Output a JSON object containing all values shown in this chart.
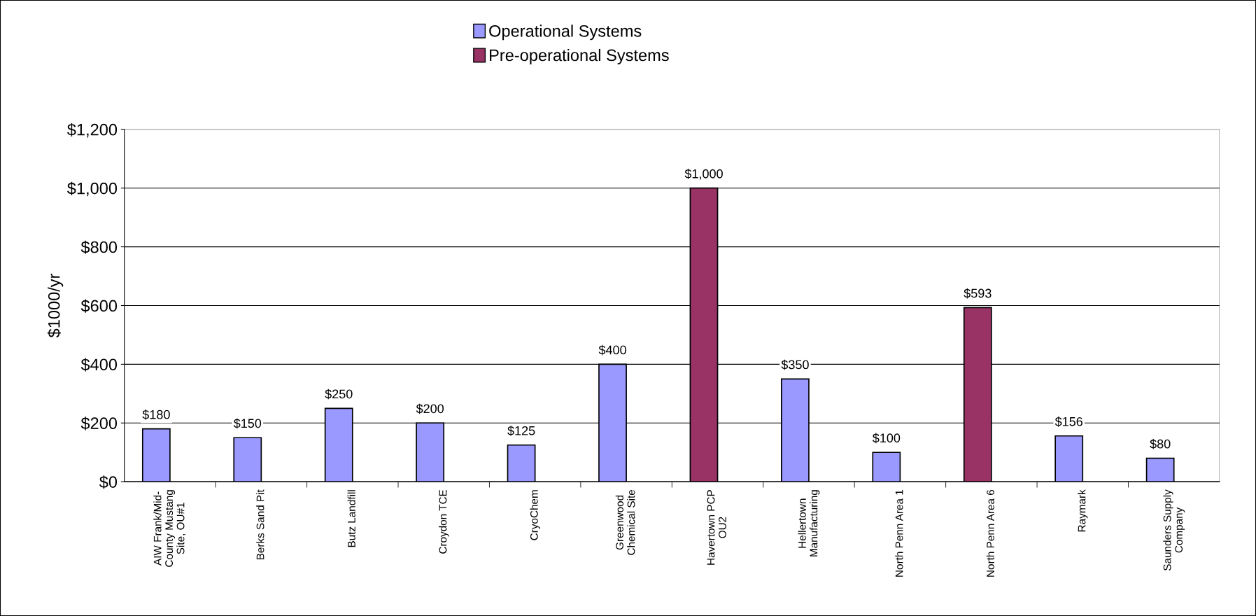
{
  "chart_data": {
    "type": "bar",
    "stacked": true,
    "ylabel": "$1000/yr",
    "categories": [
      "AIW Frank/Mid-\nCounty Mustang\nSite, OU#1",
      "Berks Sand Pit",
      "Butz Landfill",
      "Croydon TCE",
      "CryoChem",
      "Greenwood\nChemical Site",
      "Havertown PCP\nOU2",
      "Hellertown\nManufacturing",
      "North Penn Area 1",
      "North Penn Area 6",
      "Raymark",
      "Saunders Supply\nCompany"
    ],
    "series": [
      {
        "name": "Operational Systems",
        "color": "#9999ff",
        "values": [
          180,
          150,
          250,
          200,
          125,
          400,
          null,
          350,
          100,
          null,
          156,
          80
        ],
        "value_labels": [
          "$180",
          "$150",
          "$250",
          "$200",
          "$125",
          "$400",
          null,
          "$350",
          "$100",
          null,
          "$156",
          "$80"
        ]
      },
      {
        "name": "Pre-operational Systems",
        "color": "#993366",
        "values": [
          null,
          null,
          null,
          null,
          null,
          null,
          1000,
          null,
          null,
          593,
          null,
          null
        ],
        "value_labels": [
          null,
          null,
          null,
          null,
          null,
          null,
          "$1,000",
          null,
          null,
          "$593",
          null,
          null
        ]
      }
    ],
    "ylim": [
      0,
      1200
    ],
    "yticks": [
      {
        "value": 0,
        "label": "$0"
      },
      {
        "value": 200,
        "label": "$200"
      },
      {
        "value": 400,
        "label": "$400"
      },
      {
        "value": 600,
        "label": "$600"
      },
      {
        "value": 800,
        "label": "$800"
      },
      {
        "value": 1000,
        "label": "$1,000"
      },
      {
        "value": 1200,
        "label": "$1,200"
      }
    ],
    "grid": "y",
    "legend": "top"
  }
}
